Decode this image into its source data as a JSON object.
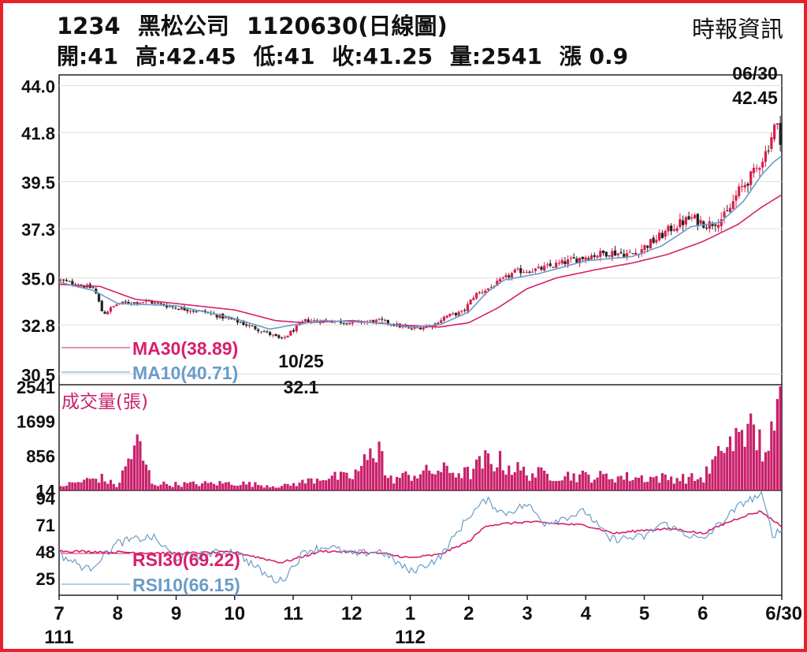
{
  "header": {
    "code": "1234",
    "name": "黑松公司",
    "date_code": "1120630(日線圖)",
    "source": "時報資訊",
    "open": "開:41",
    "high": "高:42.45",
    "low": "低:41",
    "close": "收:41.25",
    "volume": "量:2541",
    "change": "漲 0.9"
  },
  "colors": {
    "frame": "#e8202a",
    "up_candle": "#d6204a",
    "down_candle": "#222222",
    "ma30": "#d6206a",
    "ma10": "#6a9cc8",
    "volume_bar": "#c8206a",
    "grid": "#dddddd"
  },
  "chart_data": [
    {
      "type": "candlestick",
      "title": "1234 黑松公司 1120630(日線圖)",
      "y_ticks": [
        "44.0",
        "41.8",
        "39.5",
        "37.3",
        "35.0",
        "32.8",
        "30.5"
      ],
      "ylim": [
        30.0,
        44.5
      ],
      "x_ticks": [
        "7",
        "8",
        "9",
        "10",
        "11",
        "12",
        "1",
        "2",
        "3",
        "4",
        "5",
        "6",
        "6/30"
      ],
      "x_subticks": [
        "111",
        "112"
      ],
      "grid": true,
      "series_keypoints": {
        "close": [
          {
            "month": 7.0,
            "v": 34.9
          },
          {
            "month": 7.6,
            "v": 34.5
          },
          {
            "month": 7.75,
            "v": 33.3
          },
          {
            "month": 8.0,
            "v": 33.8
          },
          {
            "month": 8.5,
            "v": 33.9
          },
          {
            "month": 9.0,
            "v": 33.6
          },
          {
            "month": 9.5,
            "v": 33.4
          },
          {
            "month": 10.0,
            "v": 33.0
          },
          {
            "month": 10.5,
            "v": 32.5
          },
          {
            "month": 10.8,
            "v": 32.1
          },
          {
            "month": 11.2,
            "v": 33.0
          },
          {
            "month": 11.6,
            "v": 33.0
          },
          {
            "month": 12.0,
            "v": 32.9
          },
          {
            "month": 12.5,
            "v": 33.0
          },
          {
            "month": 13.0,
            "v": 32.6
          },
          {
            "month": 13.4,
            "v": 32.8
          },
          {
            "month": 13.6,
            "v": 33.2
          },
          {
            "month": 13.9,
            "v": 33.4
          },
          {
            "month": 14.1,
            "v": 34.2
          },
          {
            "month": 14.4,
            "v": 34.6
          },
          {
            "month": 14.8,
            "v": 35.3
          },
          {
            "month": 15.2,
            "v": 35.4
          },
          {
            "month": 15.6,
            "v": 35.7
          },
          {
            "month": 16.0,
            "v": 36.0
          },
          {
            "month": 16.4,
            "v": 36.2
          },
          {
            "month": 16.8,
            "v": 36.1
          },
          {
            "month": 17.2,
            "v": 36.8
          },
          {
            "month": 17.5,
            "v": 37.4
          },
          {
            "month": 17.8,
            "v": 37.8
          },
          {
            "month": 18.1,
            "v": 37.5
          },
          {
            "month": 18.4,
            "v": 37.9
          },
          {
            "month": 18.6,
            "v": 39.0
          },
          {
            "month": 18.9,
            "v": 40.0
          },
          {
            "month": 19.1,
            "v": 41.0
          },
          {
            "month": 19.25,
            "v": 42.3
          },
          {
            "month": 19.35,
            "v": 41.25
          }
        ],
        "ma10": [
          {
            "month": 7.0,
            "v": 34.8
          },
          {
            "month": 7.6,
            "v": 34.4
          },
          {
            "month": 8.0,
            "v": 33.8
          },
          {
            "month": 9.0,
            "v": 33.7
          },
          {
            "month": 10.0,
            "v": 33.1
          },
          {
            "month": 10.6,
            "v": 32.6
          },
          {
            "month": 11.0,
            "v": 32.8
          },
          {
            "month": 11.5,
            "v": 33.0
          },
          {
            "month": 12.5,
            "v": 32.9
          },
          {
            "month": 13.0,
            "v": 32.7
          },
          {
            "month": 13.5,
            "v": 32.8
          },
          {
            "month": 14.0,
            "v": 33.4
          },
          {
            "month": 14.3,
            "v": 34.3
          },
          {
            "month": 14.6,
            "v": 34.9
          },
          {
            "month": 15.2,
            "v": 35.2
          },
          {
            "month": 16.0,
            "v": 35.8
          },
          {
            "month": 16.8,
            "v": 36.0
          },
          {
            "month": 17.3,
            "v": 36.5
          },
          {
            "month": 17.8,
            "v": 37.4
          },
          {
            "month": 18.3,
            "v": 37.6
          },
          {
            "month": 18.7,
            "v": 38.6
          },
          {
            "month": 19.0,
            "v": 39.8
          },
          {
            "month": 19.2,
            "v": 40.4
          },
          {
            "month": 19.35,
            "v": 40.71
          }
        ],
        "ma30": [
          {
            "month": 7.0,
            "v": 34.7
          },
          {
            "month": 7.7,
            "v": 34.6
          },
          {
            "month": 8.3,
            "v": 34.0
          },
          {
            "month": 9.0,
            "v": 33.8
          },
          {
            "month": 10.0,
            "v": 33.5
          },
          {
            "month": 10.7,
            "v": 33.0
          },
          {
            "month": 11.2,
            "v": 32.9
          },
          {
            "month": 12.0,
            "v": 33.0
          },
          {
            "month": 12.8,
            "v": 32.8
          },
          {
            "month": 13.5,
            "v": 32.7
          },
          {
            "month": 14.0,
            "v": 32.9
          },
          {
            "month": 14.5,
            "v": 33.6
          },
          {
            "month": 15.0,
            "v": 34.5
          },
          {
            "month": 15.5,
            "v": 35.0
          },
          {
            "month": 16.2,
            "v": 35.4
          },
          {
            "month": 16.8,
            "v": 35.7
          },
          {
            "month": 17.4,
            "v": 36.1
          },
          {
            "month": 18.0,
            "v": 36.7
          },
          {
            "month": 18.6,
            "v": 37.5
          },
          {
            "month": 19.0,
            "v": 38.3
          },
          {
            "month": 19.35,
            "v": 38.89
          }
        ]
      },
      "annotations": [
        {
          "label": "06/30",
          "value": "42.45"
        },
        {
          "label": "10/25",
          "value": "32.1"
        }
      ],
      "legend": [
        {
          "name": "MA30(38.89)",
          "color": "#d6206a"
        },
        {
          "name": "MA10(40.71)",
          "color": "#6a9cc8"
        }
      ]
    },
    {
      "type": "bar",
      "title": "成交量(張)",
      "y_ticks": [
        "2541",
        "1699",
        "856",
        "14"
      ],
      "ylim": [
        0,
        2541
      ],
      "volume_keypoints": [
        {
          "month": 7.0,
          "v": 120
        },
        {
          "month": 7.7,
          "v": 380
        },
        {
          "month": 8.0,
          "v": 120
        },
        {
          "month": 8.32,
          "v": 1450
        },
        {
          "month": 8.6,
          "v": 200
        },
        {
          "month": 9.0,
          "v": 180
        },
        {
          "month": 10.0,
          "v": 220
        },
        {
          "month": 10.8,
          "v": 120
        },
        {
          "month": 11.2,
          "v": 250
        },
        {
          "month": 11.5,
          "v": 400
        },
        {
          "month": 12.0,
          "v": 380
        },
        {
          "month": 12.48,
          "v": 1300
        },
        {
          "month": 12.6,
          "v": 300
        },
        {
          "month": 13.0,
          "v": 450
        },
        {
          "month": 13.5,
          "v": 600
        },
        {
          "month": 14.0,
          "v": 500
        },
        {
          "month": 14.35,
          "v": 950
        },
        {
          "month": 15.0,
          "v": 500
        },
        {
          "month": 16.0,
          "v": 420
        },
        {
          "month": 17.0,
          "v": 380
        },
        {
          "month": 18.0,
          "v": 350
        },
        {
          "month": 18.3,
          "v": 1100
        },
        {
          "month": 18.65,
          "v": 1600
        },
        {
          "month": 18.8,
          "v": 1900
        },
        {
          "month": 19.1,
          "v": 1000
        },
        {
          "month": 19.3,
          "v": 2541
        }
      ]
    },
    {
      "type": "line",
      "y_ticks": [
        "94",
        "71",
        "48",
        "25"
      ],
      "ylim": [
        10,
        100
      ],
      "series": [
        {
          "name": "RSI30(69.22)",
          "color": "#d6206a",
          "keypoints": [
            {
              "month": 7.0,
              "v": 48
            },
            {
              "month": 8.0,
              "v": 47
            },
            {
              "month": 9.0,
              "v": 46
            },
            {
              "month": 10.0,
              "v": 47
            },
            {
              "month": 10.8,
              "v": 38
            },
            {
              "month": 11.5,
              "v": 48
            },
            {
              "month": 12.5,
              "v": 46
            },
            {
              "month": 13.0,
              "v": 42
            },
            {
              "month": 13.5,
              "v": 45
            },
            {
              "month": 14.0,
              "v": 56
            },
            {
              "month": 14.3,
              "v": 70
            },
            {
              "month": 15.0,
              "v": 73
            },
            {
              "month": 16.0,
              "v": 70
            },
            {
              "month": 16.5,
              "v": 63
            },
            {
              "month": 17.0,
              "v": 66
            },
            {
              "month": 17.5,
              "v": 67
            },
            {
              "month": 18.0,
              "v": 63
            },
            {
              "month": 18.4,
              "v": 72
            },
            {
              "month": 18.7,
              "v": 78
            },
            {
              "month": 19.0,
              "v": 82
            },
            {
              "month": 19.15,
              "v": 76
            },
            {
              "month": 19.35,
              "v": 69.22
            }
          ]
        },
        {
          "name": "RSI10(66.15)",
          "color": "#6a9cc8",
          "keypoints": [
            {
              "month": 7.0,
              "v": 45
            },
            {
              "month": 7.5,
              "v": 32
            },
            {
              "month": 8.0,
              "v": 55
            },
            {
              "month": 8.3,
              "v": 58
            },
            {
              "month": 8.6,
              "v": 60
            },
            {
              "month": 9.0,
              "v": 42
            },
            {
              "month": 10.0,
              "v": 48
            },
            {
              "month": 10.6,
              "v": 25
            },
            {
              "month": 10.8,
              "v": 22
            },
            {
              "month": 11.2,
              "v": 48
            },
            {
              "month": 11.6,
              "v": 52
            },
            {
              "month": 12.0,
              "v": 45
            },
            {
              "month": 12.5,
              "v": 48
            },
            {
              "month": 13.0,
              "v": 30
            },
            {
              "month": 13.5,
              "v": 42
            },
            {
              "month": 14.0,
              "v": 78
            },
            {
              "month": 14.3,
              "v": 92
            },
            {
              "month": 14.6,
              "v": 80
            },
            {
              "month": 15.0,
              "v": 88
            },
            {
              "month": 15.3,
              "v": 72
            },
            {
              "month": 16.0,
              "v": 82
            },
            {
              "month": 16.4,
              "v": 58
            },
            {
              "month": 17.0,
              "v": 60
            },
            {
              "month": 17.3,
              "v": 72
            },
            {
              "month": 17.6,
              "v": 65
            },
            {
              "month": 18.0,
              "v": 57
            },
            {
              "month": 18.3,
              "v": 72
            },
            {
              "month": 18.7,
              "v": 90
            },
            {
              "month": 19.0,
              "v": 96
            },
            {
              "month": 19.2,
              "v": 62
            },
            {
              "month": 19.35,
              "v": 66.15
            }
          ]
        }
      ]
    }
  ]
}
